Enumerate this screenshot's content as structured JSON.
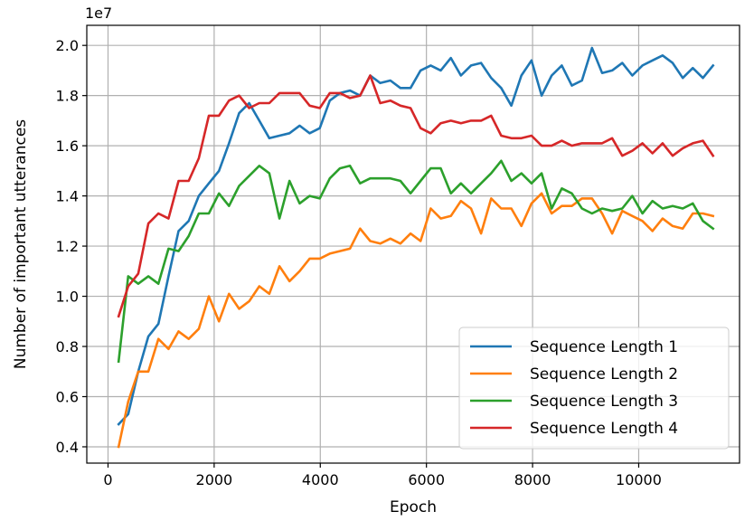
{
  "chart_data": {
    "type": "line",
    "xlabel": "Epoch",
    "ylabel": "Number of important utterances",
    "y_offset_text": "1e7",
    "xlim": [
      -400,
      11900
    ],
    "ylim": [
      0.335,
      2.08
    ],
    "xticks": [
      0,
      2000,
      4000,
      6000,
      8000,
      10000
    ],
    "xtick_labels": [
      "0",
      "2000",
      "4000",
      "6000",
      "8000",
      "10000"
    ],
    "yticks": [
      0.4,
      0.6,
      0.8,
      1.0,
      1.2,
      1.4,
      1.6,
      1.8,
      2.0
    ],
    "ytick_labels": [
      "0.4",
      "0.6",
      "0.8",
      "1.0",
      "1.2",
      "1.4",
      "1.6",
      "1.8",
      "2.0"
    ],
    "grid": true,
    "legend_position": "lower-right",
    "x": [
      200,
      380,
      570,
      760,
      950,
      1140,
      1330,
      1520,
      1710,
      1900,
      2090,
      2280,
      2470,
      2660,
      2850,
      3040,
      3230,
      3420,
      3610,
      3800,
      3990,
      4180,
      4370,
      4560,
      4750,
      4940,
      5130,
      5320,
      5510,
      5700,
      5890,
      6080,
      6270,
      6460,
      6650,
      6840,
      7030,
      7220,
      7410,
      7600,
      7790,
      7980,
      8170,
      8360,
      8550,
      8740,
      8930,
      9120,
      9310,
      9500,
      9690,
      9880,
      10070,
      10260,
      10450,
      10640,
      10830,
      11020,
      11210,
      11400
    ],
    "series": [
      {
        "name": "Sequence Length 1",
        "color": "#1f77b4",
        "values": [
          0.49,
          0.53,
          0.7,
          0.84,
          0.89,
          1.08,
          1.26,
          1.3,
          1.4,
          1.45,
          1.5,
          1.61,
          1.73,
          1.77,
          1.7,
          1.63,
          1.64,
          1.65,
          1.68,
          1.65,
          1.67,
          1.78,
          1.81,
          1.82,
          1.8,
          1.88,
          1.85,
          1.86,
          1.83,
          1.83,
          1.9,
          1.92,
          1.9,
          1.95,
          1.88,
          1.92,
          1.93,
          1.87,
          1.83,
          1.76,
          1.88,
          1.94,
          1.8,
          1.88,
          1.92,
          1.84,
          1.86,
          1.99,
          1.89,
          1.9,
          1.93,
          1.88,
          1.92,
          1.94,
          1.96,
          1.93,
          1.87,
          1.91,
          1.87,
          1.92
        ]
      },
      {
        "name": "Sequence Length 2",
        "color": "#ff7f0e",
        "values": [
          0.4,
          0.58,
          0.7,
          0.7,
          0.83,
          0.79,
          0.86,
          0.83,
          0.87,
          1.0,
          0.9,
          1.01,
          0.95,
          0.98,
          1.04,
          1.01,
          1.12,
          1.06,
          1.1,
          1.15,
          1.15,
          1.17,
          1.18,
          1.19,
          1.27,
          1.22,
          1.21,
          1.23,
          1.21,
          1.25,
          1.22,
          1.35,
          1.31,
          1.32,
          1.38,
          1.35,
          1.25,
          1.39,
          1.35,
          1.35,
          1.28,
          1.37,
          1.41,
          1.33,
          1.36,
          1.36,
          1.39,
          1.39,
          1.33,
          1.25,
          1.34,
          1.32,
          1.3,
          1.26,
          1.31,
          1.28,
          1.27,
          1.33,
          1.33,
          1.32
        ]
      },
      {
        "name": "Sequence Length 3",
        "color": "#2ca02c",
        "values": [
          0.74,
          1.08,
          1.05,
          1.08,
          1.05,
          1.19,
          1.18,
          1.24,
          1.33,
          1.33,
          1.41,
          1.36,
          1.44,
          1.48,
          1.52,
          1.49,
          1.31,
          1.46,
          1.37,
          1.4,
          1.39,
          1.47,
          1.51,
          1.52,
          1.45,
          1.47,
          1.47,
          1.47,
          1.46,
          1.41,
          1.46,
          1.51,
          1.51,
          1.41,
          1.45,
          1.41,
          1.45,
          1.49,
          1.54,
          1.46,
          1.49,
          1.45,
          1.49,
          1.35,
          1.43,
          1.41,
          1.35,
          1.33,
          1.35,
          1.34,
          1.35,
          1.4,
          1.33,
          1.38,
          1.35,
          1.36,
          1.35,
          1.37,
          1.3,
          1.27
        ]
      },
      {
        "name": "Sequence Length 4",
        "color": "#d62728",
        "values": [
          0.92,
          1.04,
          1.09,
          1.29,
          1.33,
          1.31,
          1.46,
          1.46,
          1.55,
          1.72,
          1.72,
          1.78,
          1.8,
          1.75,
          1.77,
          1.77,
          1.81,
          1.81,
          1.81,
          1.76,
          1.75,
          1.81,
          1.81,
          1.79,
          1.8,
          1.88,
          1.77,
          1.78,
          1.76,
          1.75,
          1.67,
          1.65,
          1.69,
          1.7,
          1.69,
          1.7,
          1.7,
          1.72,
          1.64,
          1.63,
          1.63,
          1.64,
          1.6,
          1.6,
          1.62,
          1.6,
          1.61,
          1.61,
          1.61,
          1.63,
          1.56,
          1.58,
          1.61,
          1.57,
          1.61,
          1.56,
          1.59,
          1.61,
          1.62,
          1.56
        ]
      }
    ]
  }
}
